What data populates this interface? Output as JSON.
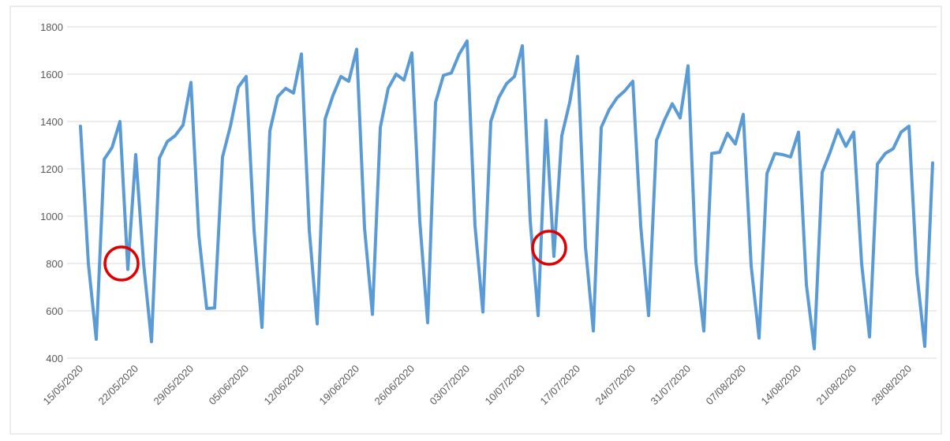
{
  "chart_data": {
    "type": "line",
    "categories": [
      "15/05/2020",
      null,
      null,
      null,
      null,
      null,
      null,
      "22/05/2020",
      null,
      null,
      null,
      null,
      null,
      null,
      "29/05/2020",
      null,
      null,
      null,
      null,
      null,
      null,
      "05/06/2020",
      null,
      null,
      null,
      null,
      null,
      null,
      "12/06/2020",
      null,
      null,
      null,
      null,
      null,
      null,
      "19/06/2020",
      null,
      null,
      null,
      null,
      null,
      null,
      "26/06/2020",
      null,
      null,
      null,
      null,
      null,
      null,
      "03/07/2020",
      null,
      null,
      null,
      null,
      null,
      null,
      "10/07/2020",
      null,
      null,
      null,
      null,
      null,
      null,
      "17/07/2020",
      null,
      null,
      null,
      null,
      null,
      null,
      "24/07/2020",
      null,
      null,
      null,
      null,
      null,
      null,
      "31/07/2020",
      null,
      null,
      null,
      null,
      null,
      null,
      "07/08/2020",
      null,
      null,
      null,
      null,
      null,
      null,
      "14/08/2020",
      null,
      null,
      null,
      null,
      null,
      null,
      "21/08/2020",
      null,
      null,
      null,
      null,
      null,
      null,
      "28/08/2020",
      null,
      null,
      null
    ],
    "values": [
      1380,
      800,
      480,
      1240,
      1290,
      1400,
      775,
      1260,
      800,
      470,
      1245,
      1315,
      1340,
      1385,
      1565,
      920,
      610,
      612,
      1250,
      1380,
      1545,
      1590,
      940,
      530,
      1360,
      1505,
      1540,
      1520,
      1685,
      940,
      545,
      1410,
      1510,
      1590,
      1570,
      1705,
      950,
      585,
      1375,
      1540,
      1600,
      1575,
      1690,
      980,
      550,
      1480,
      1595,
      1605,
      1685,
      1740,
      960,
      595,
      1400,
      1500,
      1560,
      1590,
      1720,
      980,
      580,
      1405,
      830,
      1340,
      1480,
      1675,
      870,
      515,
      1375,
      1450,
      1500,
      1530,
      1570,
      960,
      580,
      1320,
      1405,
      1475,
      1415,
      1635,
      805,
      515,
      1265,
      1270,
      1350,
      1305,
      1430,
      790,
      485,
      1180,
      1265,
      1260,
      1250,
      1355,
      710,
      440,
      1185,
      1270,
      1365,
      1295,
      1355,
      800,
      490,
      1220,
      1265,
      1285,
      1355,
      1380,
      760,
      450,
      1225
    ],
    "color": "#5b9bd5",
    "ylim": [
      400,
      1800
    ],
    "yticks": [
      400,
      600,
      800,
      1000,
      1200,
      1400,
      1600,
      1800
    ],
    "grid": true
  }
}
